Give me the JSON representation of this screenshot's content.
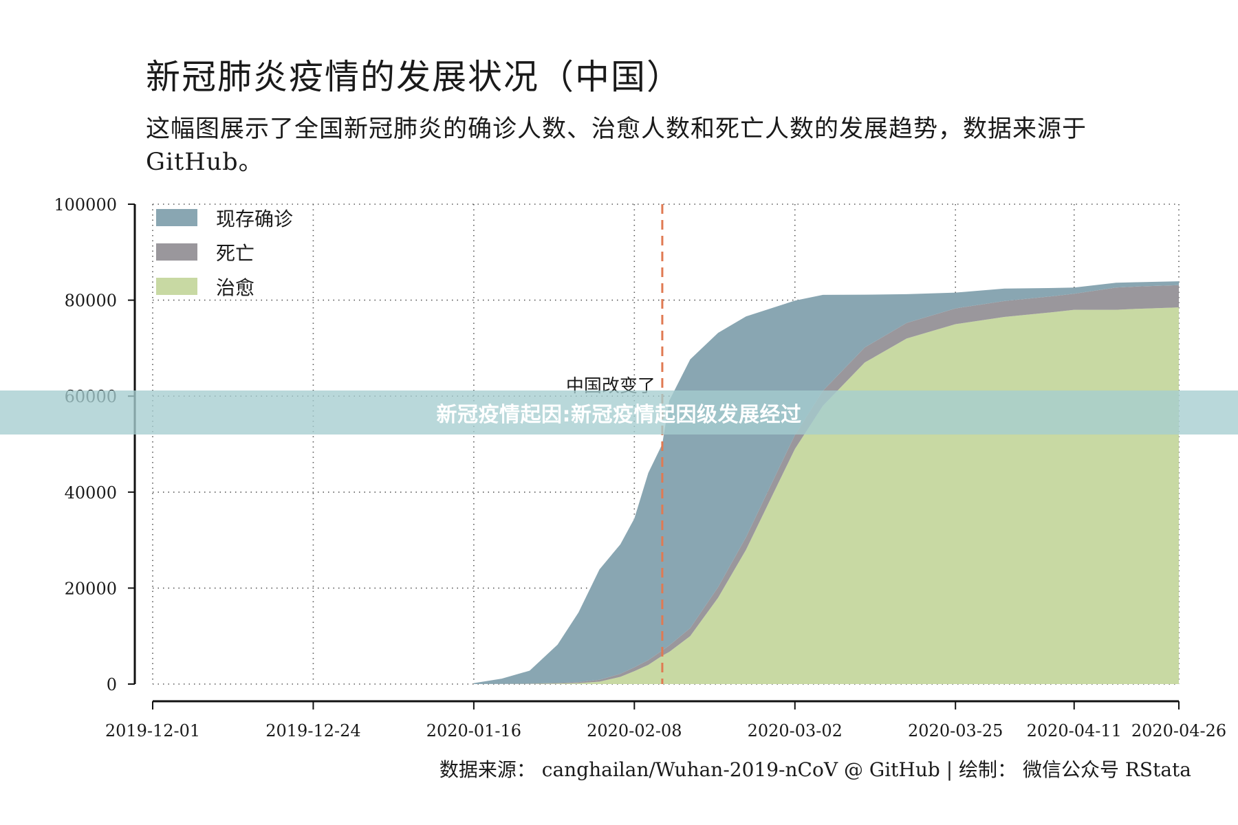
{
  "title": "新冠肺炎疫情的发展状况（中国）",
  "subtitle": "这幅图展示了全国新冠肺炎的确诊人数、治愈人数和死亡人数的发展趋势，数据来源于 GitHub。",
  "banner_text": "新冠疫情起因:新冠疫情起因级发展经过",
  "caption": "数据来源： canghailan/Wuhan-2019-nCoV @ GitHub | 绘制： 微信公众号 RStata",
  "colors": {
    "active": "#89a6b2",
    "deaths": "#9a979c",
    "recovered": "#c8d9a3",
    "annotation_line": "#e07a52",
    "banner": "#a5cdd0"
  },
  "chart_data": {
    "type": "area",
    "stacked": true,
    "xlabel": "",
    "ylabel": "",
    "ylim": [
      0,
      100000
    ],
    "xlim": [
      "2019-12-01",
      "2020-04-26"
    ],
    "yticks": [
      0,
      20000,
      40000,
      60000,
      80000,
      100000
    ],
    "ytick_labels": [
      "0",
      "20000",
      "40000",
      "60000",
      "80000",
      "100000"
    ],
    "xticks": [
      "2019-12-01",
      "2019-12-24",
      "2020-01-16",
      "2020-02-08",
      "2020-03-02",
      "2020-03-25",
      "2020-04-11",
      "2020-04-26"
    ],
    "grid": true,
    "legend_position": "top-left",
    "legend": [
      "现存确诊",
      "死亡",
      "治愈"
    ],
    "x": [
      "2020-01-16",
      "2020-01-20",
      "2020-01-24",
      "2020-01-28",
      "2020-01-31",
      "2020-02-03",
      "2020-02-06",
      "2020-02-08",
      "2020-02-10",
      "2020-02-12",
      "2020-02-13",
      "2020-02-16",
      "2020-02-20",
      "2020-02-24",
      "2020-02-28",
      "2020-03-02",
      "2020-03-06",
      "2020-03-12",
      "2020-03-18",
      "2020-03-25",
      "2020-04-01",
      "2020-04-08",
      "2020-04-11",
      "2020-04-17",
      "2020-04-20",
      "2020-04-26"
    ],
    "series": [
      {
        "name": "治愈",
        "values": [
          0,
          20,
          50,
          100,
          200,
          500,
          1500,
          2700,
          4000,
          5900,
          6700,
          10000,
          18000,
          28000,
          40000,
          49000,
          58000,
          67000,
          72000,
          75000,
          76500,
          77500,
          78000,
          78000,
          78200,
          78500
        ]
      },
      {
        "name": "死亡",
        "values": [
          0,
          10,
          40,
          130,
          220,
          400,
          630,
          800,
          1000,
          1100,
          1360,
          1660,
          2200,
          2600,
          2800,
          2900,
          3100,
          3150,
          3250,
          3280,
          3310,
          3330,
          3340,
          4630,
          4640,
          4640
        ]
      },
      {
        "name": "现存确诊",
        "values": [
          200,
          1100,
          2700,
          8000,
          14500,
          23000,
          27000,
          31000,
          39000,
          43000,
          51000,
          56000,
          53000,
          46000,
          35700,
          28000,
          20000,
          11000,
          6000,
          3300,
          2600,
          1700,
          1300,
          1000,
          900,
          800
        ]
      }
    ],
    "annotations": [
      {
        "type": "vline",
        "x": "2020-02-12",
        "text": "中国改变了"
      }
    ]
  }
}
